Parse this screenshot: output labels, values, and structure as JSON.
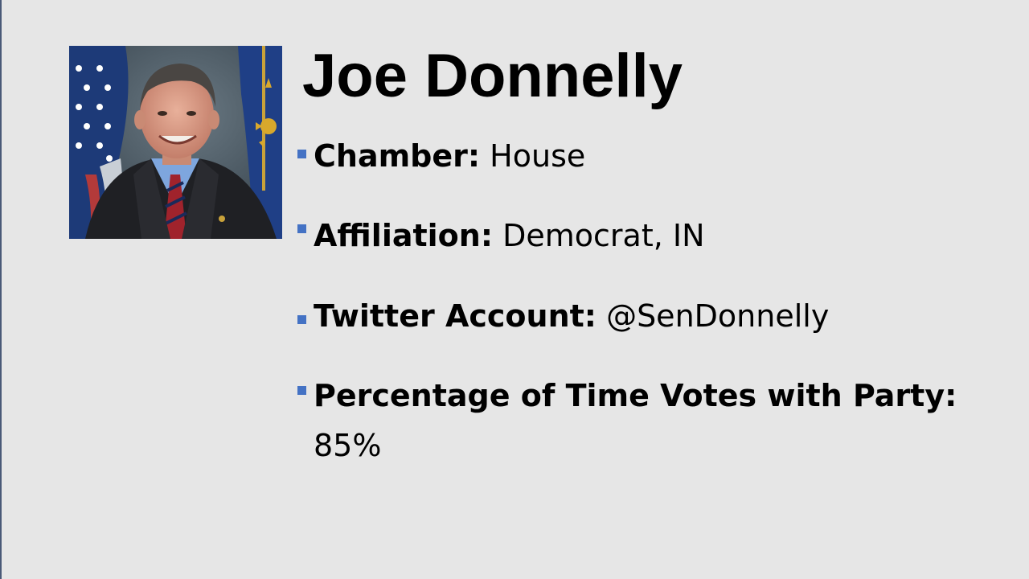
{
  "slide": {
    "title": "Joe Donnelly",
    "portrait": {
      "icon": "portrait-photo"
    },
    "bullets": [
      {
        "label": "Chamber:",
        "value": " House"
      },
      {
        "label": "Affiliation:",
        "value": " Democrat, IN"
      },
      {
        "label": "Twitter Account:",
        "value": " @SenDonnelly"
      },
      {
        "label": "Percentage of Time Votes with Party:",
        "value": "85%"
      }
    ],
    "colors": {
      "background": "#e6e6e6",
      "bullet_marker": "#4472c4",
      "text": "#000000"
    }
  }
}
